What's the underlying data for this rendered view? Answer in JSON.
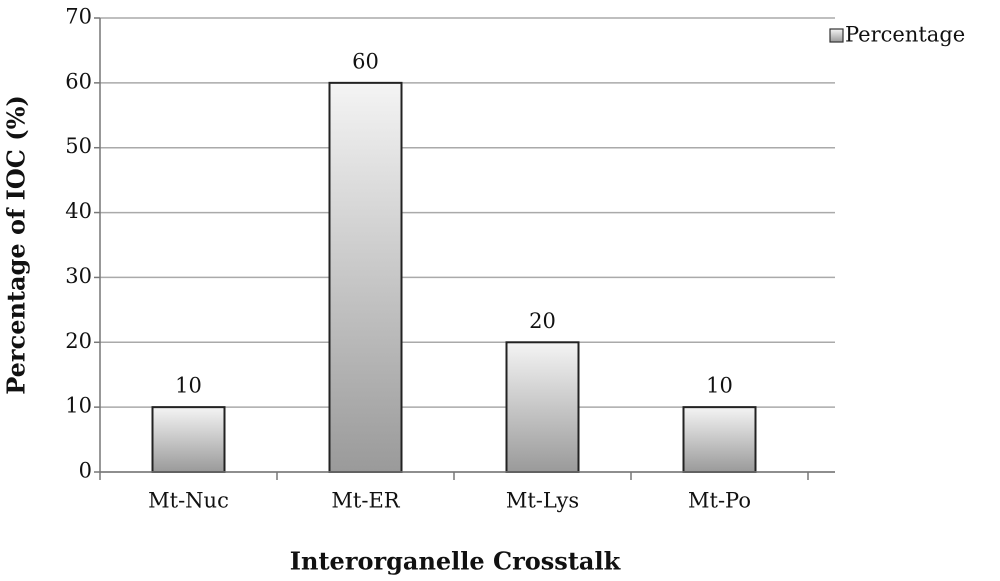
{
  "chart_data": {
    "type": "bar",
    "x_label": "Interorganelle Crosstalk",
    "y_label": "Percentage of IOC (%)",
    "categories": [
      "Mt-Nuc",
      "Mt-ER",
      "Mt-Lys",
      "Mt-Po"
    ],
    "series": [
      {
        "name": "Percentage",
        "color": "#9a9a9a",
        "values": [
          10,
          60,
          20,
          10
        ]
      }
    ],
    "ylim": [
      0,
      70
    ],
    "yticks": [
      0,
      10,
      20,
      30,
      40,
      50,
      60,
      70
    ],
    "grid": true,
    "legend": "top-right"
  }
}
